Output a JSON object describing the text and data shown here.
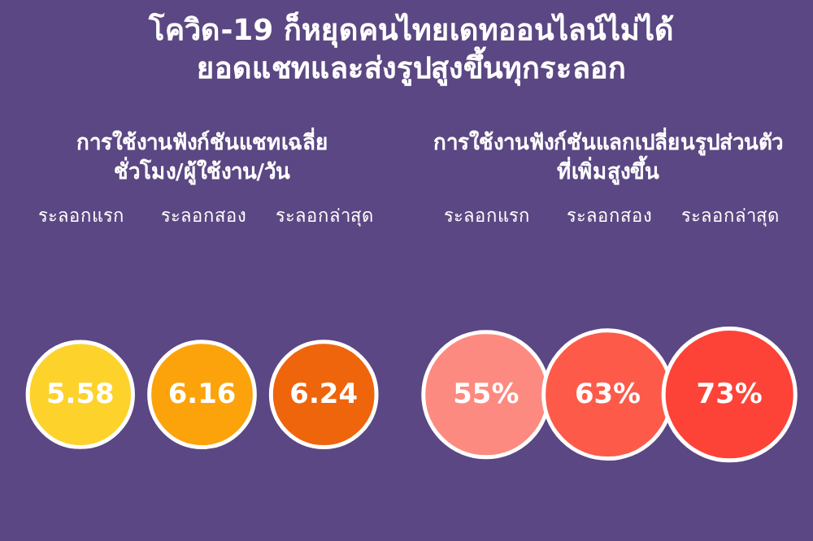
{
  "chart_data": [
    {
      "type": "other",
      "title": "โควิด-19 ก็หยุดคนไทยเดทออนไลน์ไม่ได้\nยอดแชทและส่งรูปสูงขึ้นทุกระลอก",
      "subtitle": "การใช้งานฟังก์ชันแชทเฉลี่ย\nชั่วโมง/ผู้ใช้งาน/วัน",
      "categories": [
        "ระลอกแรก",
        "ระลอกสอง",
        "ระลอกล่าสุด"
      ],
      "values": [
        5.58,
        6.16,
        6.24
      ],
      "colors": [
        "#fdd22b",
        "#fca30b",
        "#ee650c"
      ],
      "data_labels": true
    },
    {
      "type": "other",
      "subtitle": "การใช้งานฟังก์ชันแลกเปลี่ยนรูปส่วนตัว\nที่เพิ่มสูงขึ้น",
      "categories": [
        "ระลอกแรก",
        "ระลอกสอง",
        "ระลอกล่าสุด"
      ],
      "values": [
        55,
        63,
        73
      ],
      "value_labels": [
        "55%",
        "63%",
        "73%"
      ],
      "colors": [
        "#fd8a80",
        "#fd5a4a",
        "#fd4338"
      ]
    }
  ]
}
